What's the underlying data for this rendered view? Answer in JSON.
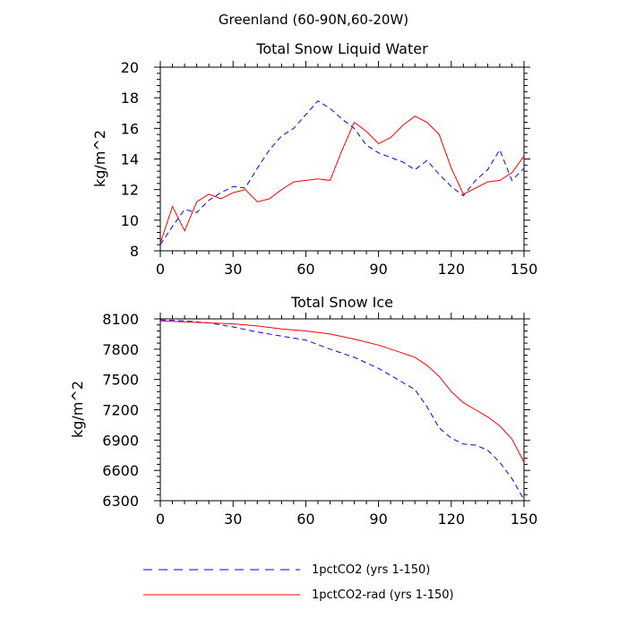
{
  "figure": {
    "title": "Greenland (60-90N,60-20W)"
  },
  "colors": {
    "series_1": "#0000ff",
    "series_2": "#ff0000",
    "axis": "#000000"
  },
  "legend": {
    "placement": "bottom",
    "items": [
      {
        "label": "1pctCO2 (yrs 1-150)",
        "color": "#0000ff",
        "dash": "dashed"
      },
      {
        "label": "1pctCO2-rad (yrs 1-150)",
        "color": "#ff0000",
        "dash": "solid"
      }
    ]
  },
  "chart_data": [
    {
      "type": "line",
      "title": "Total Snow Liquid Water",
      "xlabel": "",
      "ylabel": "kg/m^2",
      "xlim": [
        0,
        150
      ],
      "ylim": [
        8,
        20
      ],
      "xticks": [
        0,
        30,
        60,
        90,
        120,
        150
      ],
      "yticks": [
        8,
        10,
        12,
        14,
        16,
        18,
        20
      ],
      "grid": false,
      "series": [
        {
          "name": "1pctCO2 (yrs 1-150)",
          "style": "dashed",
          "color": "#0000ff",
          "x": [
            0,
            5,
            10,
            15,
            20,
            25,
            30,
            35,
            40,
            45,
            50,
            55,
            60,
            65,
            70,
            75,
            80,
            85,
            90,
            95,
            100,
            105,
            110,
            115,
            120,
            125,
            130,
            135,
            140,
            145,
            150
          ],
          "values": [
            8.4,
            9.6,
            10.7,
            10.5,
            11.3,
            11.8,
            12.2,
            12.1,
            13.4,
            14.6,
            15.5,
            16.0,
            16.9,
            17.8,
            17.3,
            16.6,
            16.0,
            14.9,
            14.4,
            14.1,
            13.8,
            13.3,
            13.9,
            13.0,
            12.2,
            11.6,
            12.6,
            13.3,
            14.6,
            12.6,
            13.4
          ]
        },
        {
          "name": "1pctCO2-rad (yrs 1-150)",
          "style": "solid",
          "color": "#ff0000",
          "x": [
            0,
            5,
            10,
            15,
            20,
            25,
            30,
            35,
            40,
            45,
            50,
            55,
            60,
            65,
            70,
            75,
            80,
            85,
            90,
            95,
            100,
            105,
            110,
            115,
            120,
            125,
            130,
            135,
            140,
            145,
            150
          ],
          "values": [
            8.5,
            10.9,
            9.3,
            11.2,
            11.7,
            11.4,
            11.8,
            12.0,
            11.2,
            11.4,
            12.0,
            12.5,
            12.6,
            12.7,
            12.6,
            14.6,
            16.4,
            15.8,
            15.0,
            15.4,
            16.2,
            16.8,
            16.4,
            15.6,
            13.4,
            11.7,
            12.1,
            12.5,
            12.6,
            13.1,
            14.2
          ]
        }
      ]
    },
    {
      "type": "line",
      "title": "Total Snow Ice",
      "xlabel": "",
      "ylabel": "kg/m^2",
      "xlim": [
        0,
        150
      ],
      "ylim": [
        6300,
        8100
      ],
      "xticks": [
        0,
        30,
        60,
        90,
        120,
        150
      ],
      "yticks": [
        6300,
        6600,
        6900,
        7200,
        7500,
        7800,
        8100
      ],
      "grid": false,
      "series": [
        {
          "name": "1pctCO2 (yrs 1-150)",
          "style": "dashed",
          "color": "#0000ff",
          "x": [
            0,
            10,
            20,
            30,
            40,
            50,
            60,
            70,
            80,
            90,
            100,
            105,
            110,
            115,
            120,
            125,
            130,
            135,
            140,
            145,
            150
          ],
          "values": [
            8090,
            8080,
            8060,
            8020,
            7970,
            7930,
            7890,
            7800,
            7720,
            7610,
            7470,
            7400,
            7230,
            7020,
            6920,
            6860,
            6850,
            6800,
            6680,
            6520,
            6310
          ]
        },
        {
          "name": "1pctCO2-rad (yrs 1-150)",
          "style": "solid",
          "color": "#ff0000",
          "x": [
            0,
            10,
            20,
            30,
            40,
            50,
            60,
            70,
            80,
            90,
            100,
            105,
            110,
            115,
            120,
            125,
            130,
            135,
            140,
            145,
            150
          ],
          "values": [
            8080,
            8070,
            8060,
            8050,
            8030,
            8000,
            7980,
            7950,
            7900,
            7840,
            7760,
            7720,
            7640,
            7530,
            7380,
            7270,
            7200,
            7130,
            7040,
            6910,
            6680
          ]
        }
      ]
    }
  ]
}
